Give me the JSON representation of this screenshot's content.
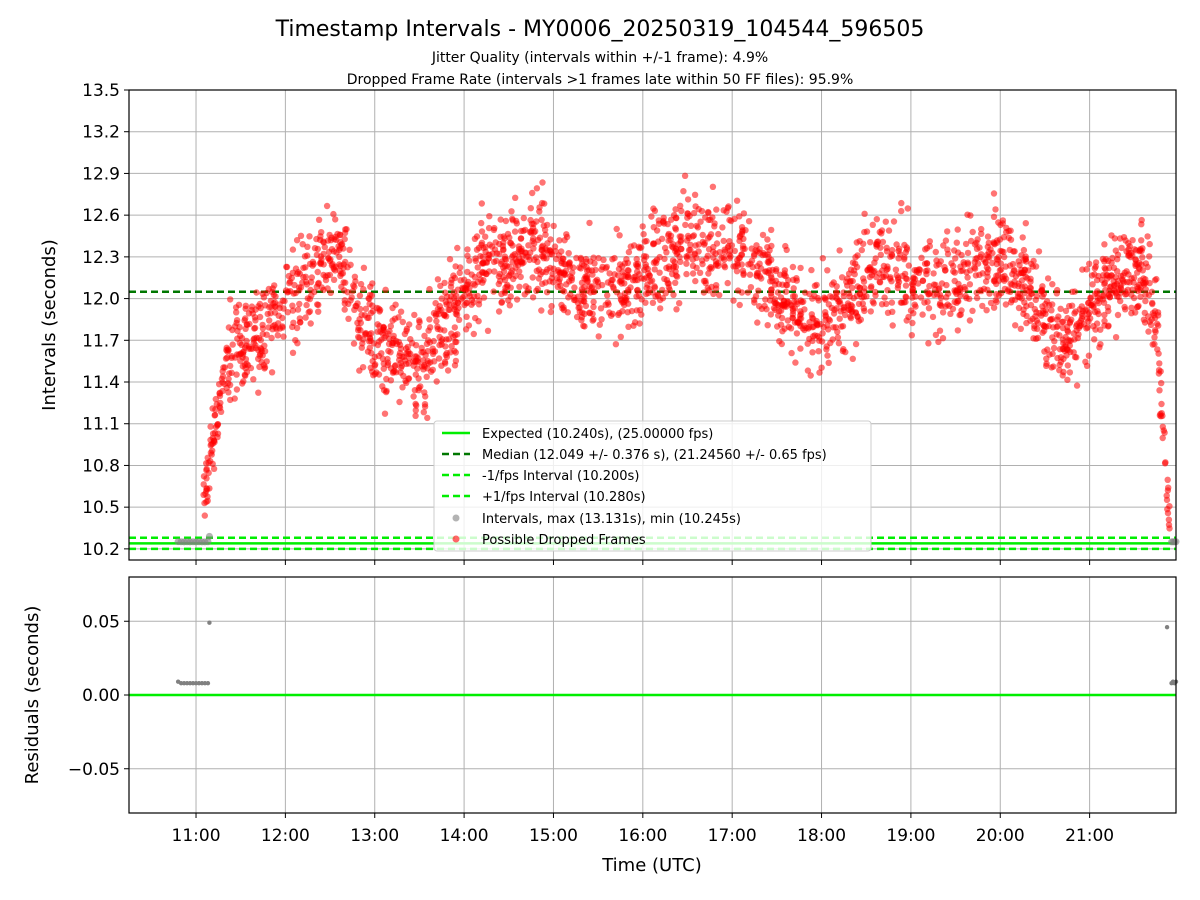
{
  "chart_data": {
    "type": "scatter",
    "title": "Timestamp Intervals - MY0006_20250319_104544_596505",
    "subtitle_lines": [
      "Jitter Quality (intervals within +/-1 frame): 4.9%",
      "Dropped Frame Rate (intervals >1 frames late within 50 FF files): 95.9%"
    ],
    "xlabel": "Time (UTC)",
    "x_ticks": [
      "11:00",
      "12:00",
      "13:00",
      "14:00",
      "15:00",
      "16:00",
      "17:00",
      "18:00",
      "19:00",
      "20:00",
      "21:00"
    ],
    "xlim": [
      "10:15",
      "21:58"
    ],
    "grid": true,
    "panels": [
      {
        "name": "intervals",
        "ylabel": "Intervals (seconds)",
        "ylim": [
          10.12,
          13.5
        ],
        "y_ticks": [
          "10.2",
          "10.5",
          "10.8",
          "11.1",
          "11.4",
          "11.7",
          "12.0",
          "12.3",
          "12.6",
          "12.9",
          "13.2",
          "13.5"
        ],
        "reference_lines": [
          {
            "label": "Expected (10.240s), (25.00000 fps)",
            "y": 10.24,
            "color": "#00ee00",
            "style": "solid"
          },
          {
            "label": "Median (12.049 +/- 0.376 s), (21.24560 +/- 0.65 fps)",
            "y": 12.049,
            "color": "#007700",
            "style": "dashed"
          },
          {
            "label": "-1/fps Interval (10.200s)",
            "y": 10.2,
            "color": "#00ee00",
            "style": "dashed"
          },
          {
            "label": "+1/fps Interval (10.280s)",
            "y": 10.28,
            "color": "#00ee00",
            "style": "dashed"
          }
        ],
        "series": [
          {
            "name": "Intervals, max (13.131s), min (10.245s)",
            "color": "#808080",
            "points": [
              [
                "10:48",
                10.252
              ],
              [
                "10:50",
                10.251
              ],
              [
                "10:52",
                10.25
              ],
              [
                "10:54",
                10.251
              ],
              [
                "10:56",
                10.25
              ],
              [
                "10:58",
                10.251
              ],
              [
                "11:00",
                10.25
              ],
              [
                "11:02",
                10.251
              ],
              [
                "11:04",
                10.25
              ],
              [
                "11:06",
                10.25
              ],
              [
                "11:08",
                10.251
              ],
              [
                "11:09",
                10.29
              ],
              [
                "21:55",
                10.25
              ],
              [
                "21:56",
                10.251
              ],
              [
                "21:57",
                10.25
              ],
              [
                "21:58",
                10.251
              ]
            ]
          },
          {
            "name": "Possible Dropped Frames",
            "color": "#ff0000",
            "trend": [
              [
                "11:05",
                10.6
              ],
              [
                "11:15",
                11.2
              ],
              [
                "11:25",
                11.65
              ],
              [
                "11:40",
                11.7
              ],
              [
                "12:00",
                11.95
              ],
              [
                "12:20",
                12.2
              ],
              [
                "12:35",
                12.35
              ],
              [
                "12:50",
                11.8
              ],
              [
                "13:10",
                11.6
              ],
              [
                "13:30",
                11.5
              ],
              [
                "13:45",
                11.8
              ],
              [
                "14:00",
                12.05
              ],
              [
                "14:20",
                12.25
              ],
              [
                "14:50",
                12.4
              ],
              [
                "15:10",
                12.15
              ],
              [
                "15:40",
                12.05
              ],
              [
                "16:00",
                12.15
              ],
              [
                "16:30",
                12.4
              ],
              [
                "17:00",
                12.35
              ],
              [
                "17:20",
                12.2
              ],
              [
                "17:45",
                11.9
              ],
              [
                "18:00",
                11.8
              ],
              [
                "18:20",
                12.0
              ],
              [
                "18:40",
                12.25
              ],
              [
                "19:00",
                12.15
              ],
              [
                "19:20",
                12.1
              ],
              [
                "19:40",
                12.2
              ],
              [
                "20:00",
                12.3
              ],
              [
                "20:15",
                12.15
              ],
              [
                "20:30",
                11.85
              ],
              [
                "20:45",
                11.7
              ],
              [
                "21:00",
                11.95
              ],
              [
                "21:20",
                12.2
              ],
              [
                "21:35",
                12.2
              ],
              [
                "21:45",
                11.8
              ],
              [
                "21:50",
                10.9
              ],
              [
                "21:54",
                10.4
              ]
            ],
            "spread": 0.38
          }
        ],
        "legend": {
          "location": "lower-center"
        }
      },
      {
        "name": "residuals",
        "ylabel": "Residuals (seconds)",
        "ylim": [
          -0.08,
          0.08
        ],
        "y_ticks": [
          "−0.05",
          "0.00",
          "0.05"
        ],
        "y_tick_values": [
          -0.05,
          0,
          0.05
        ],
        "reference_lines": [
          {
            "y": 0,
            "color": "#00ee00",
            "style": "solid"
          }
        ],
        "series": [
          {
            "name": "residuals",
            "color": "#808080",
            "points": [
              [
                "10:48",
                0.009
              ],
              [
                "10:50",
                0.008
              ],
              [
                "10:52",
                0.008
              ],
              [
                "10:54",
                0.008
              ],
              [
                "10:56",
                0.008
              ],
              [
                "10:58",
                0.008
              ],
              [
                "11:00",
                0.008
              ],
              [
                "11:02",
                0.008
              ],
              [
                "11:04",
                0.008
              ],
              [
                "11:06",
                0.008
              ],
              [
                "11:08",
                0.008
              ],
              [
                "11:09",
                0.049
              ],
              [
                "21:52",
                0.046
              ],
              [
                "21:55",
                0.008
              ],
              [
                "21:56",
                0.009
              ],
              [
                "21:57",
                0.008
              ],
              [
                "21:58",
                0.009
              ]
            ]
          }
        ]
      }
    ]
  }
}
